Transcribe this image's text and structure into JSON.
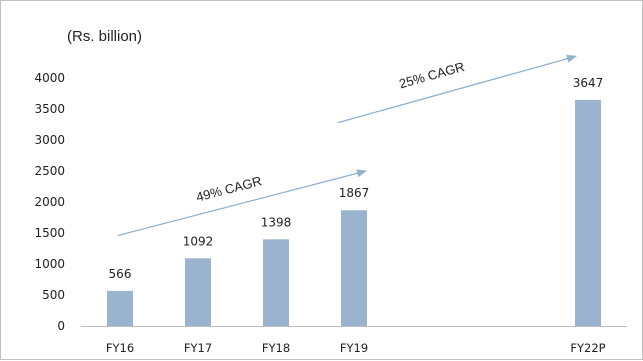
{
  "chart_data": {
    "type": "bar",
    "unit_label": "(Rs. billion)",
    "categories": [
      "FY16",
      "FY17",
      "FY18",
      "FY19",
      "FY22P"
    ],
    "category_positions": [
      0,
      1,
      2,
      3,
      6
    ],
    "values": [
      566,
      1092,
      1398,
      1867,
      3647
    ],
    "data_labels": [
      "566",
      "1092",
      "1398",
      "1867",
      "3647"
    ],
    "ylim": [
      0,
      4000
    ],
    "yticks": [
      "0",
      "500",
      "1000",
      "1500",
      "2000",
      "2500",
      "3000",
      "3500",
      "4000"
    ],
    "grid": false,
    "legend": "none",
    "bar_color": "#9ab4cf",
    "annotations": [
      {
        "text": "49% CAGR",
        "from_category": "FY16",
        "to_category": "FY19"
      },
      {
        "text": "25% CAGR",
        "from_category": "FY19",
        "to_category": "FY22P"
      }
    ],
    "arrow_color": "#8fb0cf"
  }
}
